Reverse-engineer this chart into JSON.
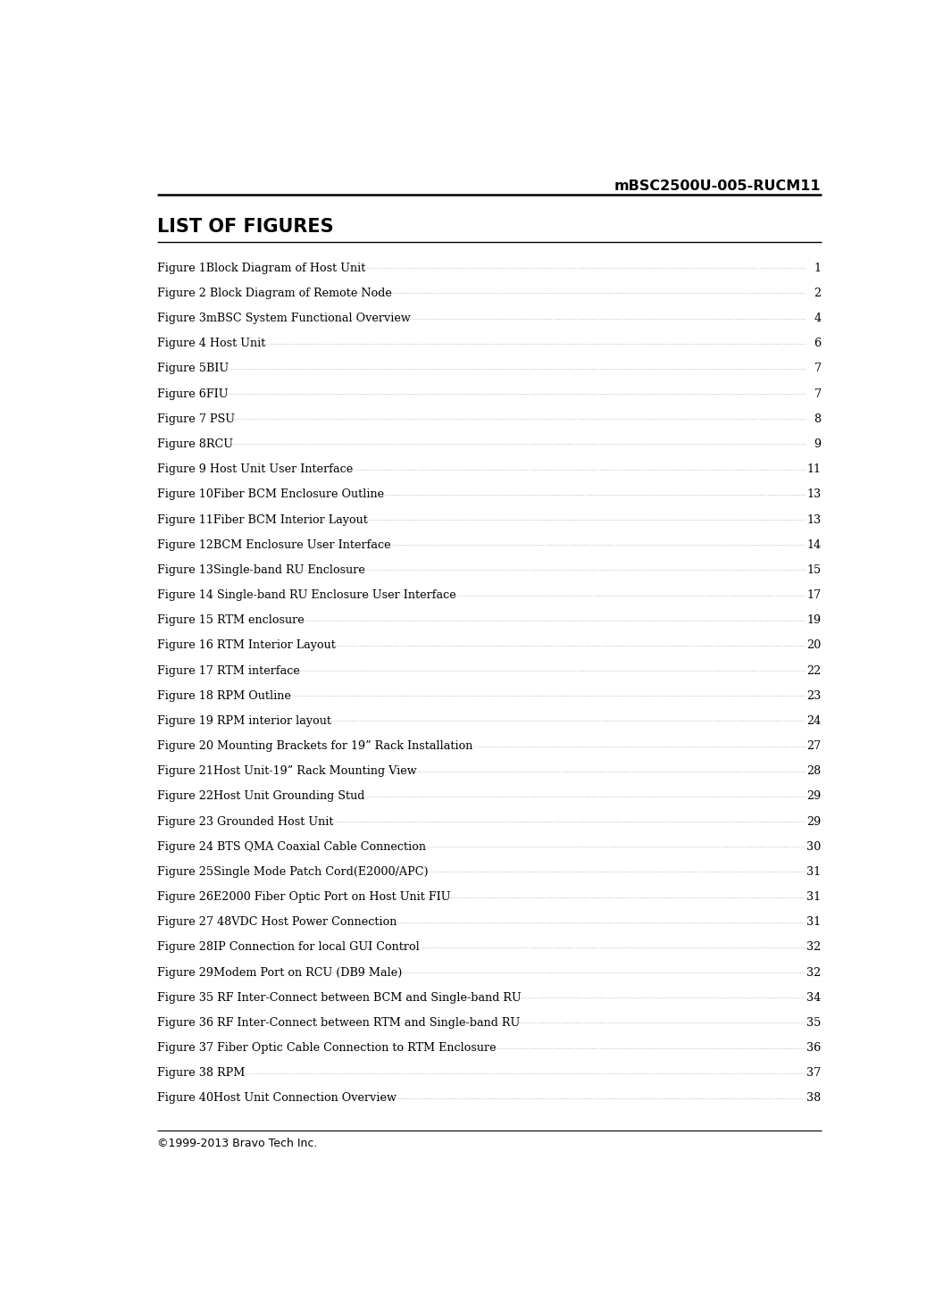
{
  "header_text": "mBSC2500U-005-RUCM11",
  "title": "LIST OF FIGURES",
  "footer_text": "©1999-2013 Bravo Tech Inc.",
  "background_color": "#ffffff",
  "text_color": "#000000",
  "entries": [
    {
      "label": "Figure 1Block Diagram of Host Unit",
      "page": "1"
    },
    {
      "label": "Figure 2 Block Diagram of Remote Node",
      "page": "2"
    },
    {
      "label": "Figure 3mBSC System Functional Overview",
      "page": "4"
    },
    {
      "label": "Figure 4 Host Unit",
      "page": "6"
    },
    {
      "label": "Figure 5BIU",
      "page": "7"
    },
    {
      "label": "Figure 6FIU",
      "page": "7"
    },
    {
      "label": "Figure 7 PSU",
      "page": "8"
    },
    {
      "label": "Figure 8RCU",
      "page": "9"
    },
    {
      "label": "Figure 9 Host Unit User Interface",
      "page": "11"
    },
    {
      "label": "Figure 10Fiber BCM Enclosure Outline",
      "page": "13"
    },
    {
      "label": "Figure 11Fiber BCM Interior Layout",
      "page": "13"
    },
    {
      "label": "Figure 12BCM Enclosure User Interface",
      "page": "14"
    },
    {
      "label": "Figure 13Single-band RU Enclosure",
      "page": "15"
    },
    {
      "label": "Figure 14 Single-band RU Enclosure User Interface",
      "page": "17"
    },
    {
      "label": "Figure 15 RTM enclosure",
      "page": "19"
    },
    {
      "label": "Figure 16 RTM Interior Layout",
      "page": "20"
    },
    {
      "label": "Figure 17 RTM interface",
      "page": "22"
    },
    {
      "label": "Figure 18 RPM Outline",
      "page": "23"
    },
    {
      "label": "Figure 19 RPM interior layout",
      "page": "24"
    },
    {
      "label": "Figure 20 Mounting Brackets for 19” Rack Installation",
      "page": "27"
    },
    {
      "label": "Figure 21Host Unit-19” Rack Mounting View",
      "page": "28"
    },
    {
      "label": "Figure 22Host Unit Grounding Stud",
      "page": "29"
    },
    {
      "label": "Figure 23 Grounded Host Unit",
      "page": "29"
    },
    {
      "label": "Figure 24 BTS QMA Coaxial Cable Connection",
      "page": "30"
    },
    {
      "label": "Figure 25Single Mode Patch Cord(E2000/APC)",
      "page": "31"
    },
    {
      "label": "Figure 26E2000 Fiber Optic Port on Host Unit FIU",
      "page": "31"
    },
    {
      "label": "Figure 27 48VDC Host Power Connection",
      "page": "31"
    },
    {
      "label": "Figure 28IP Connection for local GUI Control",
      "page": "32"
    },
    {
      "label": "Figure 29Modem Port on RCU (DB9 Male)",
      "page": "32"
    },
    {
      "label": "Figure 35 RF Inter-Connect between BCM and Single-band RU",
      "page": "34"
    },
    {
      "label": "Figure 36 RF Inter-Connect between RTM and Single-band RU",
      "page": "35"
    },
    {
      "label": "Figure 37 Fiber Optic Cable Connection to RTM Enclosure",
      "page": "36"
    },
    {
      "label": "Figure 38 RPM",
      "page": "37"
    },
    {
      "label": "Figure 40Host Unit Connection Overview",
      "page": "38"
    }
  ]
}
